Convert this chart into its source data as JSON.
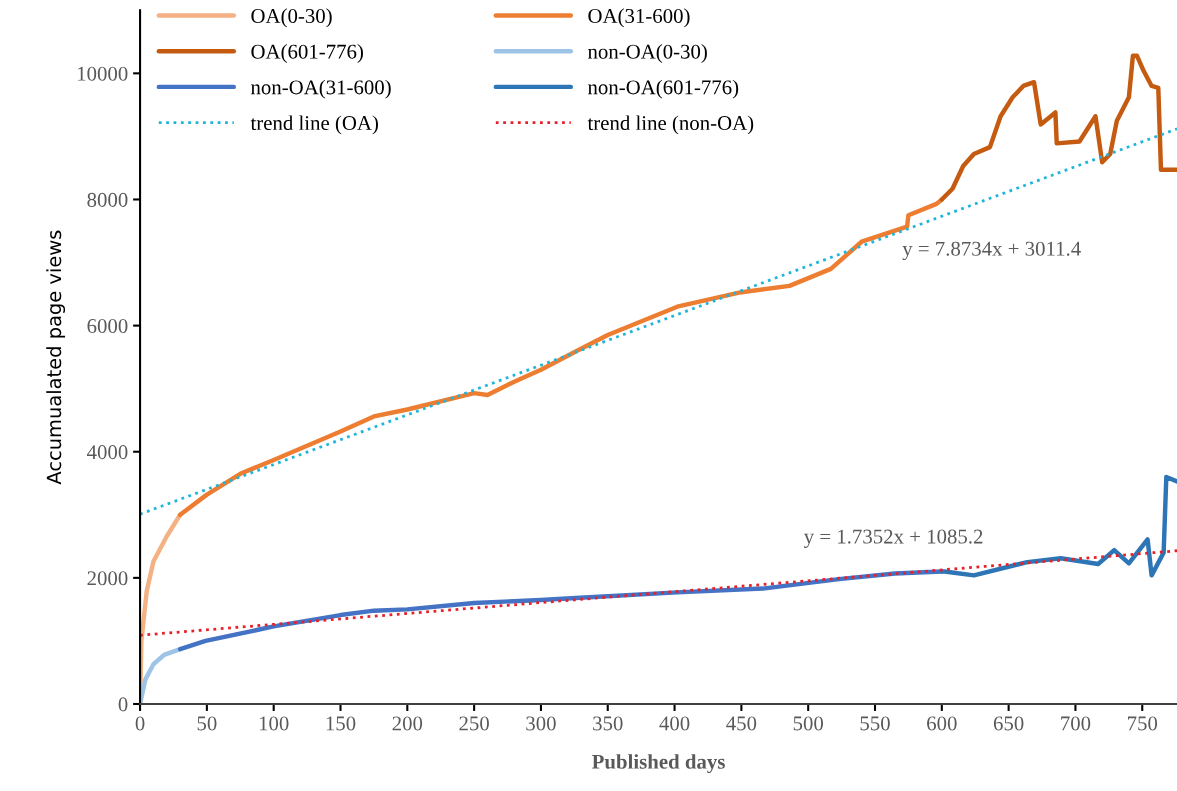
{
  "chart_data": {
    "type": "line",
    "xlabel": "Published days",
    "ylabel": "Accumualated page views",
    "xlim": [
      0,
      776
    ],
    "ylim": [
      0,
      11000
    ],
    "xticks": [
      0,
      50,
      100,
      150,
      200,
      250,
      300,
      350,
      400,
      450,
      500,
      550,
      600,
      650,
      700,
      750
    ],
    "yticks": [
      0,
      2000,
      4000,
      6000,
      8000,
      10000
    ],
    "grid": false,
    "legend": "top left",
    "series": [
      {
        "name": "OA(0-30)",
        "color": "#f4b183",
        "x": [
          0,
          1,
          5,
          10,
          20,
          30
        ],
        "values": [
          0,
          1000,
          1790,
          2260,
          2660,
          3000
        ]
      },
      {
        "name": "OA(31-600)",
        "color": "#ed7d31",
        "x": [
          30,
          50,
          75,
          100,
          150,
          175,
          200,
          250,
          260,
          280,
          300,
          326,
          350,
          402,
          450,
          486,
          517,
          540,
          574,
          575,
          596,
          600
        ],
        "values": [
          3000,
          3320,
          3650,
          3870,
          4320,
          4560,
          4670,
          4930,
          4900,
          5110,
          5300,
          5590,
          5850,
          6300,
          6530,
          6630,
          6900,
          7330,
          7570,
          7750,
          7930,
          8000
        ]
      },
      {
        "name": "OA(601-776)",
        "color": "#c55a11",
        "x": [
          600,
          608,
          616,
          624,
          636,
          644,
          653,
          661,
          669,
          674,
          685,
          686,
          703,
          715,
          720,
          726,
          731,
          740,
          743,
          746,
          751,
          757,
          762,
          764,
          776
        ],
        "values": [
          8000,
          8170,
          8530,
          8720,
          8830,
          9320,
          9620,
          9800,
          9860,
          9190,
          9380,
          8890,
          8920,
          9320,
          8590,
          8720,
          9250,
          9620,
          10280,
          10280,
          10040,
          9800,
          9770,
          8470,
          8470
        ]
      },
      {
        "name": "non-OA(0-30)",
        "color": "#9dc3e6",
        "x": [
          0,
          4,
          10,
          18,
          30
        ],
        "values": [
          0,
          390,
          630,
          780,
          870
        ]
      },
      {
        "name": "non-OA(31-600)",
        "color": "#4472c4",
        "x": [
          30,
          49,
          100,
          150,
          175,
          200,
          250,
          300,
          326,
          402,
          466,
          523,
          565,
          600
        ],
        "values": [
          870,
          1000,
          1230,
          1410,
          1480,
          1500,
          1600,
          1650,
          1680,
          1770,
          1830,
          1980,
          2070,
          2100
        ]
      },
      {
        "name": "non-OA(601-776)",
        "color": "#2e75b6",
        "x": [
          600,
          602,
          624,
          664,
          689,
          717,
          729,
          740,
          754,
          757,
          766,
          768,
          776
        ],
        "values": [
          2100,
          2100,
          2040,
          2250,
          2310,
          2220,
          2440,
          2230,
          2610,
          2040,
          2400,
          3600,
          3530
        ]
      },
      {
        "name": "trend line (OA)",
        "color": "#1fb5d9",
        "line_style": "dotted",
        "x": [
          0,
          776
        ],
        "values": [
          3010,
          9120
        ]
      },
      {
        "name": "trend line (non-OA)",
        "color": "#e8202a",
        "line_style": "dotted",
        "x": [
          0,
          776
        ],
        "values": [
          1090,
          2430
        ]
      }
    ],
    "annotations": [
      "y = 7.8734x + 3011.4",
      "y = 1.7352x + 1085.2"
    ]
  }
}
